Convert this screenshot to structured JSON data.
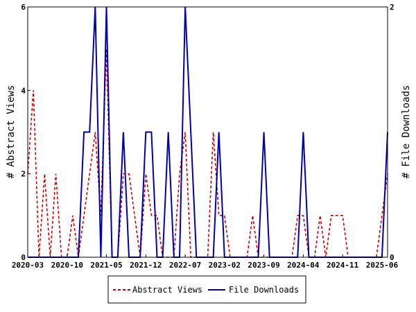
{
  "chart_data": {
    "type": "line",
    "x": [
      "2020-03",
      "2020-04",
      "2020-05",
      "2020-06",
      "2020-07",
      "2020-08",
      "2020-09",
      "2020-10",
      "2020-11",
      "2020-12",
      "2021-01",
      "2021-02",
      "2021-03",
      "2021-04",
      "2021-05",
      "2021-06",
      "2021-07",
      "2021-08",
      "2021-09",
      "2021-10",
      "2021-11",
      "2021-12",
      "2022-01",
      "2022-02",
      "2022-03",
      "2022-04",
      "2022-05",
      "2022-06",
      "2022-07",
      "2022-08",
      "2022-09",
      "2022-10",
      "2022-11",
      "2022-12",
      "2023-01",
      "2023-02",
      "2023-03",
      "2023-04",
      "2023-05",
      "2023-06",
      "2023-07",
      "2023-08",
      "2023-09",
      "2023-10",
      "2023-11",
      "2023-12",
      "2024-01",
      "2024-02",
      "2024-03",
      "2024-04",
      "2024-05",
      "2024-06",
      "2024-07",
      "2024-08",
      "2024-09",
      "2024-10",
      "2024-11",
      "2024-12",
      "2025-01",
      "2025-02",
      "2025-03",
      "2025-04",
      "2025-05",
      "2025-06",
      "2025-07"
    ],
    "xtick_labels": [
      "2020-03",
      "2020-10",
      "2021-05",
      "2021-12",
      "2022-07",
      "2023-02",
      "2023-09",
      "2024-04",
      "2024-11",
      "2025-06"
    ],
    "series": [
      {
        "name": "Abstract Views",
        "axis": "left",
        "color": "#cc0000",
        "style": "dashed",
        "values": [
          2,
          4,
          0,
          2,
          0,
          2,
          0,
          0,
          1,
          0,
          1,
          2,
          3,
          1,
          5,
          0,
          0,
          2,
          2,
          1,
          0,
          2,
          1,
          1,
          0,
          0,
          0,
          2,
          3,
          0,
          0,
          0,
          0,
          3,
          1,
          1,
          0,
          0,
          0,
          0,
          1,
          0,
          0,
          0,
          0,
          0,
          0,
          0,
          1,
          1,
          0,
          0,
          1,
          0,
          1,
          1,
          1,
          0,
          0,
          0,
          0,
          0,
          0,
          1,
          2
        ]
      },
      {
        "name": "File Downloads",
        "axis": "right",
        "color": "#0000aa",
        "style": "solid",
        "values": [
          0,
          0,
          0,
          0,
          0,
          0,
          0,
          0,
          0,
          0,
          1,
          1,
          2,
          0,
          2,
          0,
          0,
          1,
          0,
          0,
          0,
          1,
          1,
          0,
          0,
          1,
          0,
          0,
          2,
          1,
          0,
          0,
          0,
          0,
          1,
          0,
          0,
          0,
          0,
          0,
          0,
          0,
          1,
          0,
          0,
          0,
          0,
          0,
          0,
          1,
          0,
          0,
          0,
          0,
          0,
          0,
          0,
          0,
          0,
          0,
          0,
          0,
          0,
          0,
          1
        ]
      }
    ],
    "ylabel": "# Abstract Views",
    "ylabel_right": "# File Downloads",
    "ylim": [
      0,
      6
    ],
    "ylim_right": [
      0,
      2
    ],
    "yticks": [
      0,
      2,
      4,
      6
    ],
    "yticks_right": [
      0,
      2
    ],
    "grid": false,
    "legend_position": "bottom"
  }
}
